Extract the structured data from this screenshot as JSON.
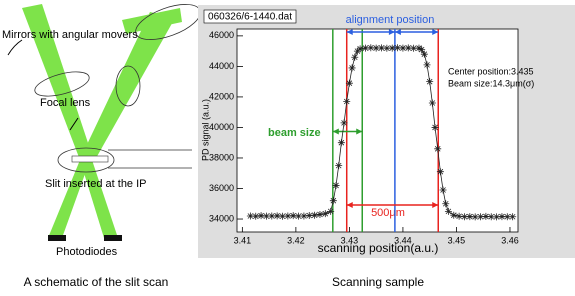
{
  "schematic": {
    "labels": {
      "mirrors": "Mirrors with angular movers",
      "lens": "Focal lens",
      "slit": "Slit inserted at the IP",
      "photodiodes": "Photodiodes"
    },
    "caption": "A schematic of the slit scan"
  },
  "chart_caption": "Scanning sample",
  "chart_data": {
    "type": "line",
    "file_label": "060326/6-1440.dat",
    "xlabel": "scanning position(a.u.)",
    "ylabel": "PD signal (a.u.)",
    "annotations": {
      "center": "Center position:3.435",
      "beam_size_text": "Beam size:14.3μm(σ)",
      "beam_size": "beam size",
      "width": "500μm",
      "alignment": "alignment position"
    },
    "markers": [
      {
        "x": 3.4269,
        "color": "#2e9e2e"
      },
      {
        "x": 3.4324,
        "color": "#2e9e2e"
      },
      {
        "x": 3.4295,
        "color": "#e8231f"
      },
      {
        "x": 3.4466,
        "color": "#e8231f"
      },
      {
        "x": 3.4385,
        "color": "#2b5fe0"
      }
    ],
    "xlim": [
      3.409,
      3.4615
    ],
    "ylim": [
      33150,
      46450
    ],
    "xticks": [
      3.41,
      3.42,
      3.43,
      3.44,
      3.45,
      3.46
    ],
    "yticks": [
      34000,
      36000,
      38000,
      40000,
      42000,
      44000,
      46000
    ],
    "series": [
      {
        "color": "#222222",
        "x": [
          3.4115,
          3.4125,
          3.4135,
          3.4145,
          3.4155,
          3.4165,
          3.4175,
          3.4185,
          3.4195,
          3.4205,
          3.4215,
          3.4225,
          3.4235,
          3.4245,
          3.4255,
          3.4265,
          3.427,
          3.4275,
          3.428,
          3.4285,
          3.429,
          3.4295,
          3.43,
          3.4305,
          3.431,
          3.4315,
          3.432,
          3.433,
          3.434,
          3.435,
          3.436,
          3.437,
          3.438,
          3.439,
          3.44,
          3.441,
          3.442,
          3.443,
          3.4435,
          3.444,
          3.4445,
          3.445,
          3.4455,
          3.446,
          3.4465,
          3.447,
          3.4475,
          3.448,
          3.4485,
          3.4495,
          3.4505,
          3.4515,
          3.4525,
          3.4535,
          3.4545,
          3.4555,
          3.4565,
          3.4575,
          3.4585,
          3.4595,
          3.4605
        ],
        "values": [
          34200,
          34180,
          34220,
          34190,
          34200,
          34210,
          34180,
          34200,
          34220,
          34190,
          34200,
          34230,
          34250,
          34300,
          34350,
          34500,
          35200,
          36200,
          37500,
          39000,
          40300,
          41700,
          42900,
          43900,
          44600,
          45000,
          45150,
          45200,
          45220,
          45200,
          45210,
          45190,
          45200,
          45220,
          45200,
          45210,
          45190,
          45200,
          45100,
          44800,
          44100,
          43000,
          41600,
          40000,
          38600,
          37100,
          35900,
          35000,
          34500,
          34250,
          34180,
          34150,
          34160,
          34140,
          34150,
          34170,
          34150,
          34140,
          34160,
          34150,
          34150
        ]
      }
    ]
  }
}
